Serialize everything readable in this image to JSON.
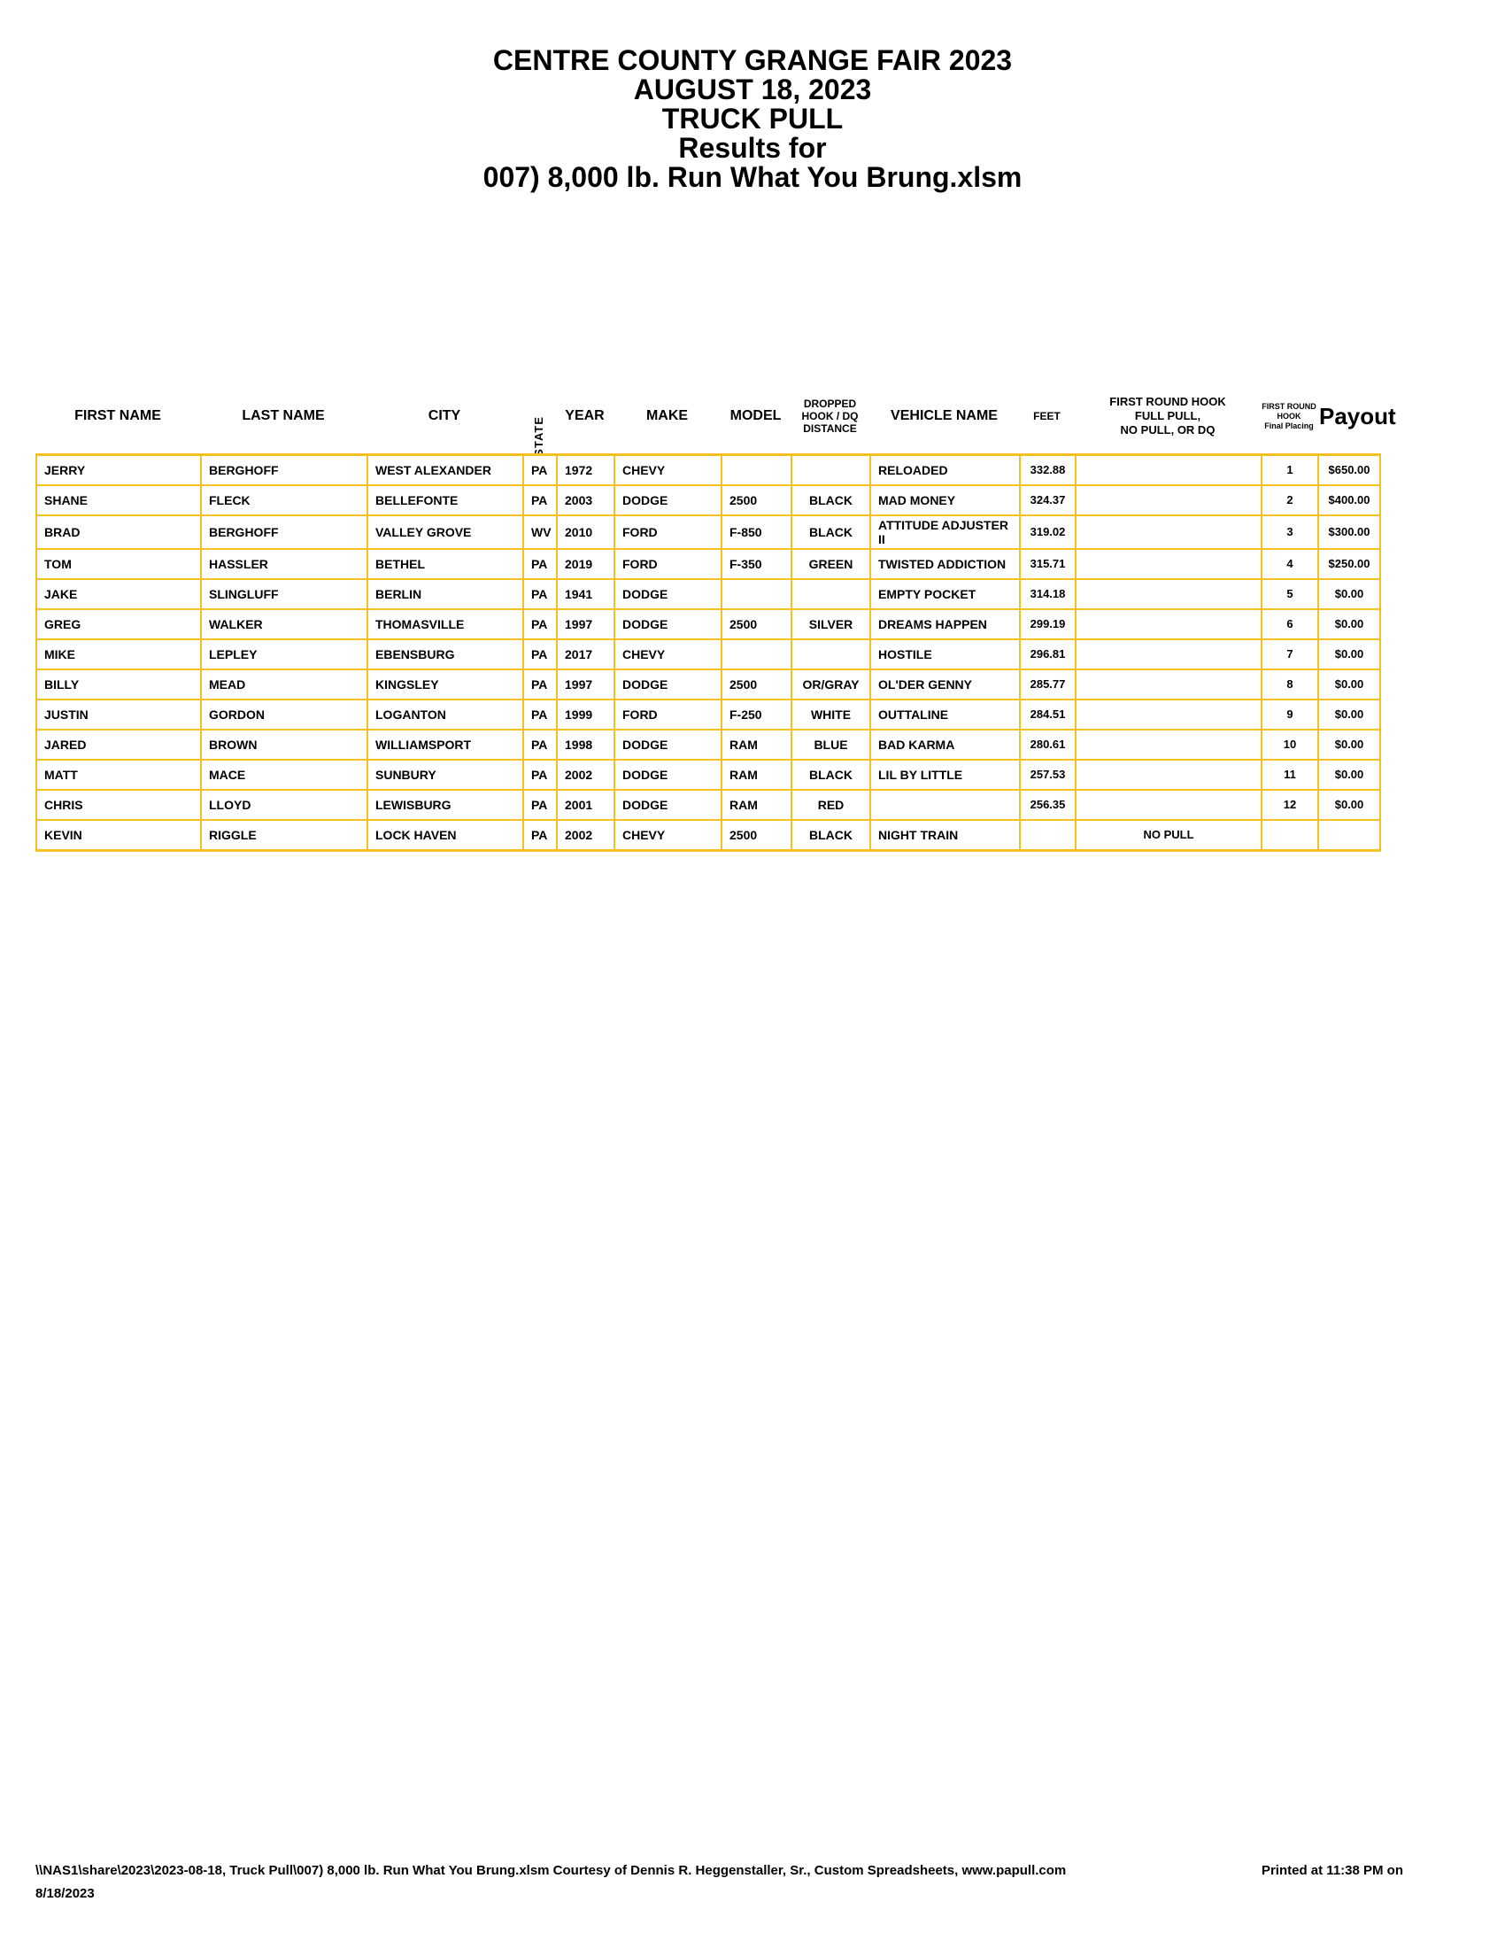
{
  "colors": {
    "grid_gold": "#F3C122",
    "text": "#000000",
    "background": "#FFFFFF"
  },
  "title_block": {
    "lines": [
      "CENTRE COUNTY GRANGE FAIR 2023",
      "AUGUST 18, 2023",
      "TRUCK PULL",
      "Results for",
      "007) 8,000 lb. Run What You Brung.xlsm"
    ]
  },
  "table": {
    "headers": {
      "first_name": "FIRST NAME",
      "last_name": "LAST NAME",
      "city": "CITY",
      "state": "STATE",
      "year": "YEAR",
      "make": "MAKE",
      "model": "MODEL",
      "dropped_hook": "DROPPED\nHOOK / DQ\nDISTANCE",
      "vehicle_name": "VEHICLE NAME",
      "feet": "FEET",
      "first_round_hook": "FIRST ROUND HOOK\nFULL PULL,\nNO PULL, OR DQ",
      "final_placing": "FIRST ROUND\nHOOK\nFinal Placing",
      "payout": "Payout"
    },
    "rows": [
      {
        "first": "JERRY",
        "last": "BERGHOFF",
        "city": "WEST ALEXANDER",
        "state": "PA",
        "year": "1972",
        "make": "CHEVY",
        "model": "",
        "color": "",
        "vehicle": "RELOADED",
        "feet": "332.88",
        "hook": "",
        "place": "1",
        "payout": "$650.00"
      },
      {
        "first": "SHANE",
        "last": "FLECK",
        "city": "BELLEFONTE",
        "state": "PA",
        "year": "2003",
        "make": "DODGE",
        "model": "2500",
        "color": "BLACK",
        "vehicle": "MAD MONEY",
        "feet": "324.37",
        "hook": "",
        "place": "2",
        "payout": "$400.00"
      },
      {
        "first": "BRAD",
        "last": "BERGHOFF",
        "city": "VALLEY GROVE",
        "state": "WV",
        "year": "2010",
        "make": "FORD",
        "model": "F-850",
        "color": "BLACK",
        "vehicle": "ATTITUDE ADJUSTER II",
        "feet": "319.02",
        "hook": "",
        "place": "3",
        "payout": "$300.00"
      },
      {
        "first": "TOM",
        "last": "HASSLER",
        "city": "BETHEL",
        "state": "PA",
        "year": "2019",
        "make": "FORD",
        "model": "F-350",
        "color": "GREEN",
        "vehicle": "TWISTED ADDICTION",
        "feet": "315.71",
        "hook": "",
        "place": "4",
        "payout": "$250.00"
      },
      {
        "first": "JAKE",
        "last": "SLINGLUFF",
        "city": "BERLIN",
        "state": "PA",
        "year": "1941",
        "make": "DODGE",
        "model": "",
        "color": "",
        "vehicle": "EMPTY POCKET",
        "feet": "314.18",
        "hook": "",
        "place": "5",
        "payout": "$0.00"
      },
      {
        "first": "GREG",
        "last": "WALKER",
        "city": "THOMASVILLE",
        "state": "PA",
        "year": "1997",
        "make": "DODGE",
        "model": "2500",
        "color": "SILVER",
        "vehicle": "DREAMS HAPPEN",
        "feet": "299.19",
        "hook": "",
        "place": "6",
        "payout": "$0.00"
      },
      {
        "first": "MIKE",
        "last": "LEPLEY",
        "city": "EBENSBURG",
        "state": "PA",
        "year": "2017",
        "make": "CHEVY",
        "model": "",
        "color": "",
        "vehicle": "HOSTILE",
        "feet": "296.81",
        "hook": "",
        "place": "7",
        "payout": "$0.00"
      },
      {
        "first": "BILLY",
        "last": "MEAD",
        "city": "KINGSLEY",
        "state": "PA",
        "year": "1997",
        "make": "DODGE",
        "model": "2500",
        "color": "OR/GRAY",
        "vehicle": "OL'DER GENNY",
        "feet": "285.77",
        "hook": "",
        "place": "8",
        "payout": "$0.00"
      },
      {
        "first": "JUSTIN",
        "last": "GORDON",
        "city": "LOGANTON",
        "state": "PA",
        "year": "1999",
        "make": "FORD",
        "model": "F-250",
        "color": "WHITE",
        "vehicle": "OUTTALINE",
        "feet": "284.51",
        "hook": "",
        "place": "9",
        "payout": "$0.00"
      },
      {
        "first": "JARED",
        "last": "BROWN",
        "city": "WILLIAMSPORT",
        "state": "PA",
        "year": "1998",
        "make": "DODGE",
        "model": "RAM",
        "color": "BLUE",
        "vehicle": "BAD KARMA",
        "feet": "280.61",
        "hook": "",
        "place": "10",
        "payout": "$0.00"
      },
      {
        "first": "MATT",
        "last": "MACE",
        "city": "SUNBURY",
        "state": "PA",
        "year": "2002",
        "make": "DODGE",
        "model": "RAM",
        "color": "BLACK",
        "vehicle": "LIL BY LITTLE",
        "feet": "257.53",
        "hook": "",
        "place": "11",
        "payout": "$0.00"
      },
      {
        "first": "CHRIS",
        "last": "LLOYD",
        "city": "LEWISBURG",
        "state": "PA",
        "year": "2001",
        "make": "DODGE",
        "model": "RAM",
        "color": "RED",
        "vehicle": "",
        "feet": "256.35",
        "hook": "",
        "place": "12",
        "payout": "$0.00"
      },
      {
        "first": "KEVIN",
        "last": "RIGGLE",
        "city": "LOCK HAVEN",
        "state": "PA",
        "year": "2002",
        "make": "CHEVY",
        "model": "2500",
        "color": "BLACK",
        "vehicle": "NIGHT TRAIN",
        "feet": "",
        "hook": "NO PULL",
        "place": "",
        "payout": ""
      }
    ]
  },
  "footer": {
    "path_text": "\\\\NAS1\\share\\2023\\2023-08-18, Truck Pull\\007) 8,000 lb. Run What You Brung.xlsm  Courtesy of Dennis R. Heggenstaller, Sr., Custom Spreadsheets, www.papull.com",
    "printed_text": "Printed at 11:38 PM on",
    "printed_date": "8/18/2023"
  }
}
